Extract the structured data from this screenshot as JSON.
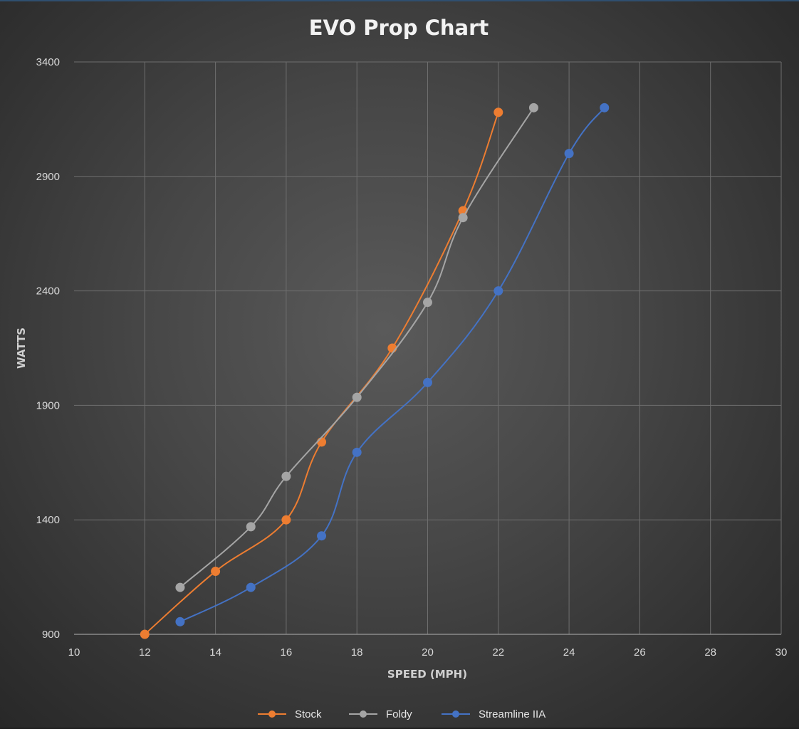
{
  "chart_data": {
    "type": "line",
    "title": "EVO Prop Chart",
    "xlabel": "SPEED (MPH)",
    "ylabel": "WATTS",
    "xlim": [
      10,
      30
    ],
    "ylim": [
      900,
      3400
    ],
    "x_ticks": [
      "10",
      "12",
      "14",
      "16",
      "18",
      "20",
      "22",
      "24",
      "26",
      "28",
      "30"
    ],
    "y_ticks": [
      "900",
      "1400",
      "1900",
      "2400",
      "2900",
      "3400"
    ],
    "grid": true,
    "legend_position": "bottom",
    "smooth": true,
    "series": [
      {
        "name": "Stock",
        "color": "#ed7d31",
        "points": [
          [
            12,
            900
          ],
          [
            14,
            1175
          ],
          [
            16,
            1400
          ],
          [
            17,
            1740
          ],
          [
            19,
            2150
          ],
          [
            21,
            2750
          ],
          [
            22,
            3180
          ]
        ]
      },
      {
        "name": "Foldy",
        "color": "#a5a5a5",
        "points": [
          [
            13,
            1105
          ],
          [
            15,
            1370
          ],
          [
            16,
            1590
          ],
          [
            18,
            1935
          ],
          [
            20,
            2350
          ],
          [
            21,
            2720
          ],
          [
            23,
            3200
          ]
        ]
      },
      {
        "name": "Streamline IIA",
        "color": "#4472c4",
        "points": [
          [
            13,
            955
          ],
          [
            15,
            1105
          ],
          [
            17,
            1330
          ],
          [
            18,
            1695
          ],
          [
            20,
            2000
          ],
          [
            22,
            2400
          ],
          [
            24,
            3000
          ],
          [
            25,
            3200
          ]
        ]
      }
    ]
  }
}
